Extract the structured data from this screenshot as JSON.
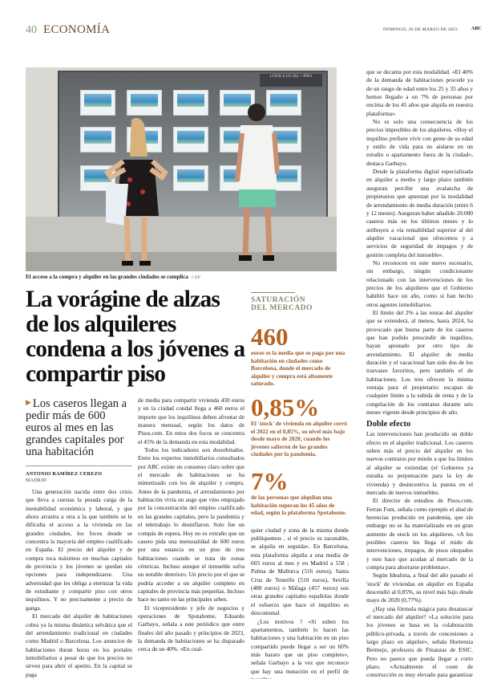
{
  "header": {
    "page_number": "40",
    "section": "ECONOMÍA",
    "date": "DOMINGO, 26 DE MARZO DE 2023",
    "publication": "ABC"
  },
  "photo": {
    "sign_text": "LOUILA LO JAL + PISO",
    "caption": "El acceso a la compra y alquiler en las grandes ciudades se complica",
    "credit": "// EP"
  },
  "article": {
    "headline": "La vorágine de alzas de los alquileres condena a los jóvenes a compartir piso",
    "subhead": "Los caseros llegan a pedir más de 600 euros al mes en las grandes capitales por una habitación",
    "author": "ANTONIO RAMÍREZ CEREZO",
    "location": "MADRID",
    "col1": [
      "Una generación nacida entre dos crisis que lleva a cuestas la pesada carga de la inestabilidad económica y laboral, y que ahora arrastra a otra a la que también se le dificulta el acceso a la vivienda en las grandes ciudades, los focos donde se concentra la mayoría del empleo cualificado en España. El precio del alquiler y de compra toca máximos en muchas capitales de provincia y los jóvenes se quedan sin opciones para independizarse. Una adversidad que les obliga a eternizar la vida de estudiante y compartir piso con otros inquilinos. Y no precisamente a precio de ganga.",
      "El mercado del alquiler de habitaciones cobra ya la misma dinámica selvática que el del arrendamiento tradicional en ciudades como Madrid o Barcelona. Los anuncios de habitaciones duran horas en los portales inmobiliarios a pesar de que los precios no sirven para abrir el apetito. En la capital se paga"
    ],
    "col2": [
      "de media para compartir vivienda 430 euros y en la ciudad condal llega a 460 euros el importe que los inquilinos deben afrontar de manera mensual, según los datos de Pisos.com. En estos dos focos se concentra el 45% de la demanda en esta modalidad.",
      "Todos los indicadores son desorbitados. Entre los expertos inmobiliarios consultados por ABC existe un consenso claro sobre que el mercado de habitaciones se ha mimetizado con los de alquiler y compra. Antes de la pandemia, el arrendamiento por habitación vivía un auge que vino empujado por la concentración del empleo cualificado en las grandes capitales, pero la pandemia y el teletrabajo lo desinflaron. Solo fue un compás de espera. Hoy no es extraño que un casero pida una mensualidad de 600 euros por una estancia en un piso de tres habitaciones cuando se trata de zonas céntricas. Incluso aunque el inmueble sufra un notable deterioro. Un precio por el que se podría acceder a un alquiler completo en capitales de provincia más pequeñas. Incluso hace no tanto en las principales urbes.",
      "El vicepresidente y jefe de negocios y operaciones de Spotahome, Eduardo Garbayo, señala a este periódico que entre finales del año pasado y principios de 2023, la demanda de habitaciones se ha disparado cerca de un 40%. «En cual-"
    ],
    "col3": [
      "quier ciudad y zona de la misma donde publiquemos , si el precio es razonable, se alquila en seguida». En Barcelona, esta plataforma alquila a una media de 603 euros al mes y en Madrid a 558 ; Palma de Mallorca (516 euros), Santa Cruz de Tenerife (510 euros), Sevilla (488 euros) o Málaga (457 euros) son otras grandes capitales españolas donde el esfuerzo que hace el inquilino es descomunal.",
      "¿Los motivos ? «Si suben los apartamentos, también lo hacen las habitaciones y una habitación en un piso compartido puede llegar a ser un 60% más barato que un piso completo», señala Garbayo a la vez que reconoce que hay una mutación en el perfil de inquilino"
    ],
    "col4": [
      "que se decanta por esta modalidad. «El 40% de la demanda de habitaciones procede ya de un rango de edad entre los 25 y 35 años y hemos llegado a un 7% de personas por encima de los 45 años que alquila en nuestra plataforma».",
      "No es solo una consecuencia de los precios imposibles de los alquileres. «Hoy el inquilino prefiere vivir con gente de su edad y estilo de vida para no aislarse en un estudio o apartamento fuera de la ciudad», destaca Garbayo.",
      "Desde la plataforma digital especializada en alquiler a medio y largo plazo también aseguran percibir una avalancha de propietarios que apuestan por la modalidad de arrendamiento de media duración (entre 6 y 12 meses). Aseguran haber añadido 20.000 caseros más en los últimos meses y lo atribuyen a «la rentabilidad superior al del alquiler vacacional que ofrecemos y a servicios de seguridad de impagos y de gestión completa del inmueble».",
      "No reconocen en este nuevo escenario, sin embargo, ningún condicionante relacionado con las intervenciones de los precios de los alquileres que el Gobierno habilitó hace un año, como si han hecho otros agentes inmobiliarios.",
      "El límite del 2% a las rentas del alquiler que se extenderá, al menos, hasta 2024, ha provocado que buena parte de los caseros que han podido prescindir de inquilino, hayan apostado por otro tipo de arrendamiento. El alquiler de media duración y el vacacional han sido dos de los trasvases favoritos, pero también el de habitaciones. Los tres ofrecen la misma ventaja para el propietario: escapan de cualquier límite a la subida de renta y de la congelación de los contratos durante seis meses vigente desde principios de año."
    ],
    "subheading": "Doble efecto",
    "col4b": [
      "Las intervenciones han producido un doble efecto en el alquiler tradicional. Los caseros suben más el precio del alquiler en los nuevos contratos por miedo a que los límites al alquiler se extiendan (el Gobierno ya estudia su perpetuación para la ley de vivienda) y desincentiva la puesta en el mercado de nuevos inmuebles.",
      "El director de estudios de Pisos.com, Ferran Font, señala como ejemplo el alud de herencias producido en pandemia, que sin embargo no se ha materializado en un gran aumento de stock en los alquileres. «A los posibles caseros les llega el ruido de intervenciones, impagos, de pisos okupados y esto hace que acudan al mercado de la compra para ahorrarse problemas».",
      "Según Idealista, a final del año pasado el 'stock' de viviendas en alquiler en España descendió al 0,85%, su nivel más bajo desde mayo de 2020 (0,77%).",
      "¿Hay una fórmula mágica para desatascar el mercado del alquiler? «La solución para los jóvenes se basa en la colaboración público-privada, a través de concesiones a largo plazo en alquiler», señala Hortensia Bermejo, profesora de Finanzas de ESIC. Pero no parece que pueda llegar a corto plazo. «Actualmente el coste de construcción es muy elevado para garantizar rentas muy por debajo de mercado»."
    ]
  },
  "sidebar": {
    "title_line1": "SATURACIÓN",
    "title_line2": "DEL MERCADO",
    "stats": [
      {
        "figure": "460",
        "text": "euros es la media que se paga por una habitación en ciudades como Barcelona, donde el mercado de alquiler y compra está altamente saturado."
      },
      {
        "figure": "0,85%",
        "text": "El 'stock' de vivienda en alquiler cerró el 2022 en el 0,85%, su nivel más bajo desde mayo de 2020, cuando los jóvenes salieron de las grandes ciudades por la pandemia."
      },
      {
        "figure": "7%",
        "text": "de las personas que alquilan una habitación superan los 45 años de edad, según la plataforma Spotahome."
      }
    ]
  },
  "colors": {
    "accent": "#b8621f",
    "section": "#6b4a2e",
    "sidebar_title": "#7d8c68"
  }
}
